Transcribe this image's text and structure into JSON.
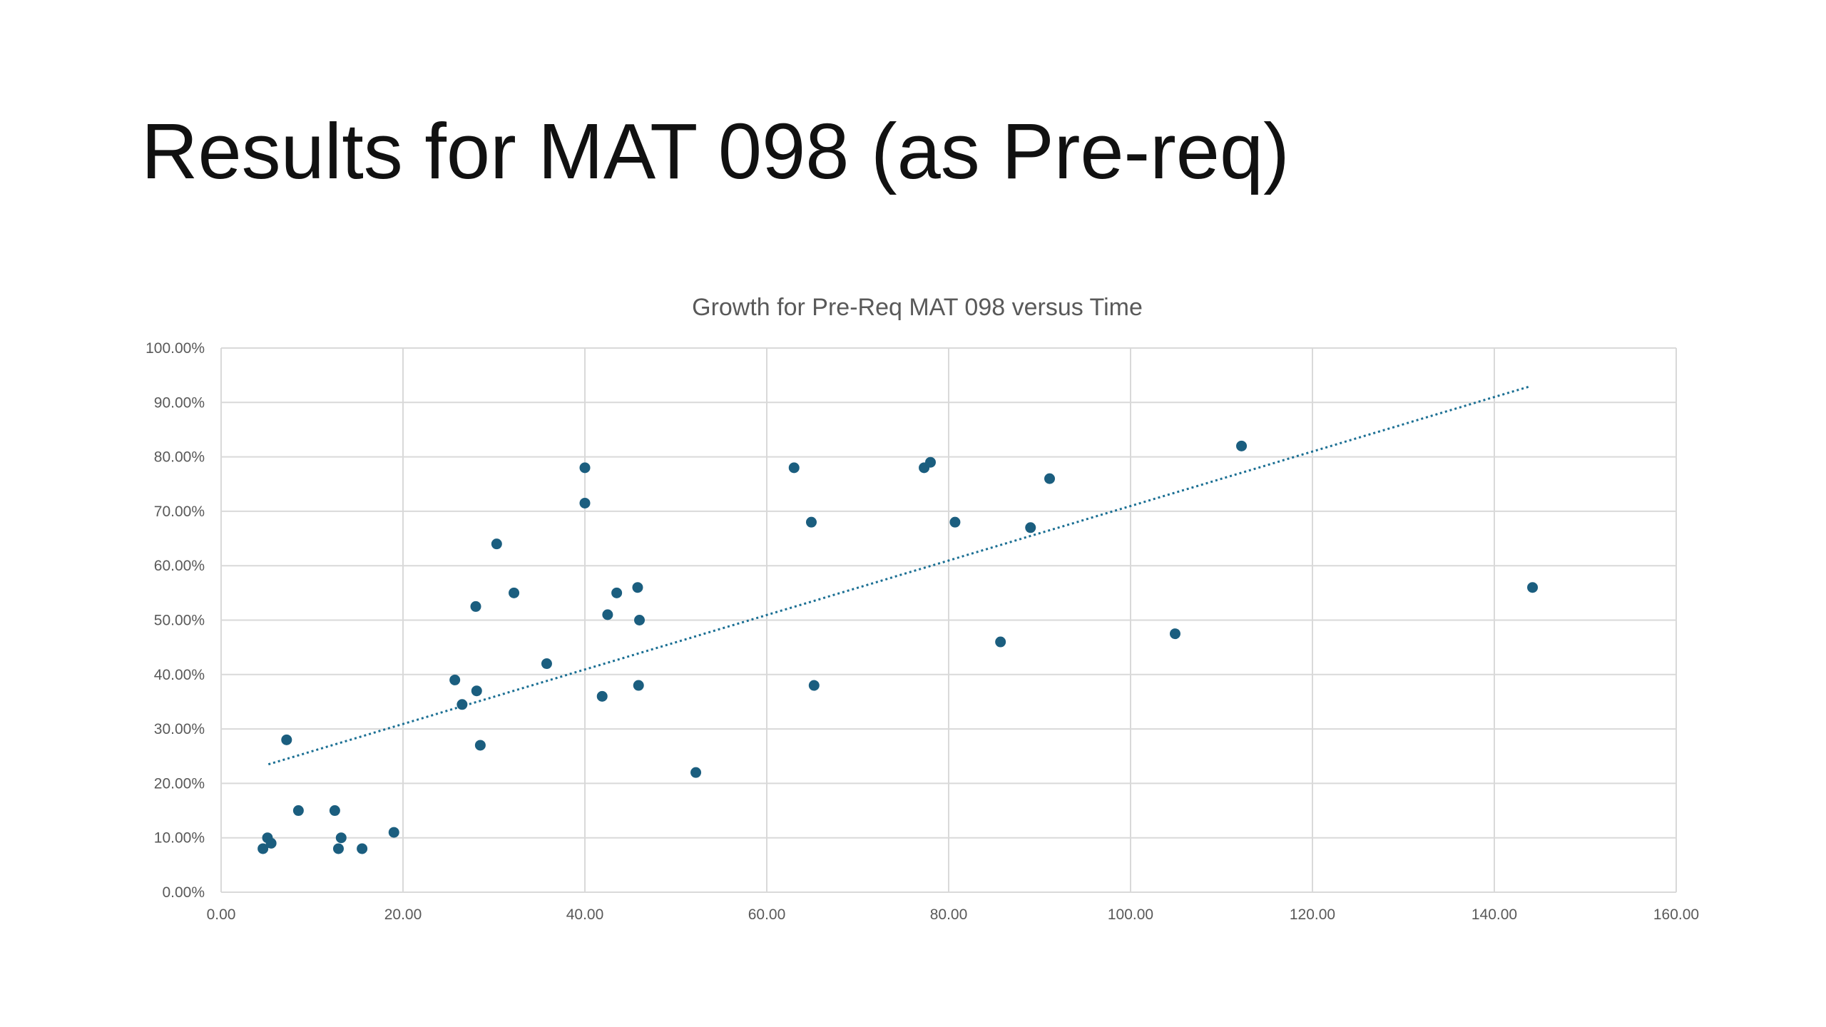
{
  "slide": {
    "title": "Results for MAT 098 (as Pre-req)"
  },
  "colors": {
    "background": "#ffffff",
    "marker": "#1b5e7f",
    "trendline": "#1b6f93",
    "grid": "#d9d9d9",
    "axis_text": "#595959"
  },
  "chart_data": {
    "type": "scatter",
    "title": "Growth for Pre-Req MAT 098 versus Time",
    "xlabel": "",
    "ylabel": "",
    "xlim": [
      0,
      160
    ],
    "ylim": [
      0,
      1.0
    ],
    "x_ticks": [
      0,
      20,
      40,
      60,
      80,
      100,
      120,
      140,
      160
    ],
    "x_tick_labels": [
      "0.00",
      "20.00",
      "40.00",
      "60.00",
      "80.00",
      "100.00",
      "120.00",
      "140.00",
      "160.00"
    ],
    "y_ticks": [
      0,
      0.1,
      0.2,
      0.3,
      0.4,
      0.5,
      0.6,
      0.7,
      0.8,
      0.9,
      1.0
    ],
    "y_tick_labels": [
      "0.00%",
      "10.00%",
      "20.00%",
      "30.00%",
      "40.00%",
      "50.00%",
      "60.00%",
      "70.00%",
      "80.00%",
      "90.00%",
      "100.00%"
    ],
    "grid": true,
    "legend": "none",
    "trendline": {
      "type": "linear",
      "style": "dotted",
      "from": {
        "x": 5.2,
        "y": 0.235
      },
      "to": {
        "x": 144,
        "y": 0.93
      }
    },
    "points": [
      {
        "x": 4.6,
        "y": 0.08
      },
      {
        "x": 5.1,
        "y": 0.1
      },
      {
        "x": 5.5,
        "y": 0.09
      },
      {
        "x": 7.2,
        "y": 0.28
      },
      {
        "x": 8.5,
        "y": 0.15
      },
      {
        "x": 12.5,
        "y": 0.15
      },
      {
        "x": 12.9,
        "y": 0.08
      },
      {
        "x": 13.2,
        "y": 0.1
      },
      {
        "x": 15.5,
        "y": 0.08
      },
      {
        "x": 19.0,
        "y": 0.11
      },
      {
        "x": 25.7,
        "y": 0.39
      },
      {
        "x": 26.5,
        "y": 0.345
      },
      {
        "x": 28.0,
        "y": 0.525
      },
      {
        "x": 28.1,
        "y": 0.37
      },
      {
        "x": 28.5,
        "y": 0.27
      },
      {
        "x": 30.3,
        "y": 0.64
      },
      {
        "x": 32.2,
        "y": 0.55
      },
      {
        "x": 35.8,
        "y": 0.42
      },
      {
        "x": 40.0,
        "y": 0.78
      },
      {
        "x": 40.0,
        "y": 0.715
      },
      {
        "x": 41.9,
        "y": 0.36
      },
      {
        "x": 42.5,
        "y": 0.51
      },
      {
        "x": 43.5,
        "y": 0.55
      },
      {
        "x": 45.8,
        "y": 0.56
      },
      {
        "x": 45.9,
        "y": 0.38
      },
      {
        "x": 46.0,
        "y": 0.5
      },
      {
        "x": 52.2,
        "y": 0.22
      },
      {
        "x": 63.0,
        "y": 0.78
      },
      {
        "x": 64.9,
        "y": 0.68
      },
      {
        "x": 65.2,
        "y": 0.38
      },
      {
        "x": 77.3,
        "y": 0.78
      },
      {
        "x": 78.0,
        "y": 0.79
      },
      {
        "x": 80.7,
        "y": 0.68
      },
      {
        "x": 85.7,
        "y": 0.46
      },
      {
        "x": 89.0,
        "y": 0.67
      },
      {
        "x": 91.1,
        "y": 0.76
      },
      {
        "x": 104.9,
        "y": 0.475
      },
      {
        "x": 112.2,
        "y": 0.82
      },
      {
        "x": 144.2,
        "y": 0.56
      }
    ]
  }
}
